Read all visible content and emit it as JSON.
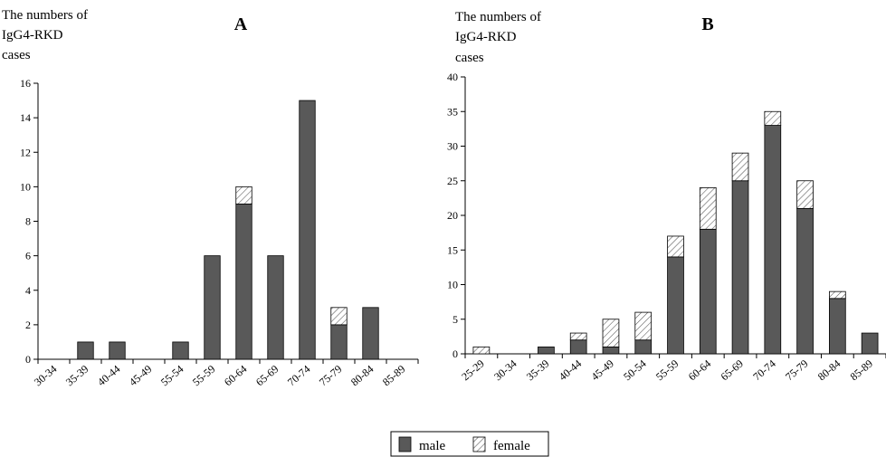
{
  "legend": [
    {
      "label": "male",
      "fill": "#595959"
    },
    {
      "label": "female",
      "fill": "hatch"
    }
  ],
  "chart_data": [
    {
      "type": "bar",
      "stacked": true,
      "title": "A",
      "ylabel": [
        "The numbers of",
        "IgG4-RKD",
        "cases"
      ],
      "ylim": [
        0,
        16
      ],
      "yticks": [
        0,
        2,
        4,
        6,
        8,
        10,
        12,
        14,
        16
      ],
      "categories": [
        "30-34",
        "35-39",
        "40-44",
        "45-49",
        "55-54",
        "55-59",
        "60-64",
        "65-69",
        "70-74",
        "75-79",
        "80-84",
        "85-89"
      ],
      "series": [
        {
          "name": "male",
          "values": [
            0,
            1,
            1,
            0,
            1,
            6,
            9,
            6,
            15,
            2,
            3,
            0
          ]
        },
        {
          "name": "female",
          "values": [
            0,
            0,
            0,
            0,
            0,
            0,
            1,
            0,
            0,
            1,
            0,
            0
          ]
        }
      ],
      "grid": false
    },
    {
      "type": "bar",
      "stacked": true,
      "title": "B",
      "ylabel": [
        "The numbers of",
        "IgG4-RKD",
        "cases"
      ],
      "ylim": [
        0,
        40
      ],
      "yticks": [
        0,
        5,
        10,
        15,
        20,
        25,
        30,
        35,
        40
      ],
      "categories": [
        "25-29",
        "30-34",
        "35-39",
        "40-44",
        "45-49",
        "50-54",
        "55-59",
        "60-64",
        "65-69",
        "70-74",
        "75-79",
        "80-84",
        "85-89"
      ],
      "series": [
        {
          "name": "male",
          "values": [
            0,
            0,
            1,
            2,
            1,
            2,
            14,
            18,
            25,
            33,
            21,
            8,
            3
          ]
        },
        {
          "name": "female",
          "values": [
            1,
            0,
            0,
            1,
            4,
            4,
            3,
            6,
            4,
            2,
            4,
            1,
            0
          ]
        }
      ],
      "grid": false
    }
  ]
}
